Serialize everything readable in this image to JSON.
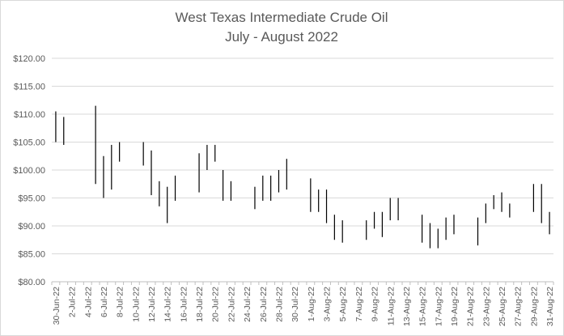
{
  "chart_data": {
    "type": "high-low",
    "title": "West Texas Intermediate Crude Oil",
    "subtitle": "July - August 2022",
    "xlabel": "",
    "ylabel": "",
    "ylim": [
      80,
      120
    ],
    "ytick_step": 5,
    "ytick_labels": [
      "$80.00",
      "$85.00",
      "$90.00",
      "$95.00",
      "$100.00",
      "$105.00",
      "$110.00",
      "$115.00",
      "$120.00"
    ],
    "grid": true,
    "legend": "none",
    "line_color": "#000000",
    "x_start": "2022-06-30",
    "x_end": "2022-08-31",
    "xtick_labels": [
      "30-Jun-22",
      "2-Jul-22",
      "4-Jul-22",
      "6-Jul-22",
      "8-Jul-22",
      "10-Jul-22",
      "12-Jul-22",
      "14-Jul-22",
      "16-Jul-22",
      "18-Jul-22",
      "20-Jul-22",
      "22-Jul-22",
      "24-Jul-22",
      "26-Jul-22",
      "28-Jul-22",
      "30-Jul-22",
      "1-Aug-22",
      "3-Aug-22",
      "5-Aug-22",
      "7-Aug-22",
      "9-Aug-22",
      "11-Aug-22",
      "13-Aug-22",
      "15-Aug-22",
      "17-Aug-22",
      "19-Aug-22",
      "21-Aug-22",
      "23-Aug-22",
      "25-Aug-22",
      "27-Aug-22",
      "29-Aug-22",
      "31-Aug-22"
    ],
    "data": [
      {
        "date": "2022-06-30",
        "high": 110.5,
        "low": 105.0
      },
      {
        "date": "2022-07-01",
        "high": 109.5,
        "low": 104.5
      },
      {
        "date": "2022-07-05",
        "high": 111.5,
        "low": 97.5
      },
      {
        "date": "2022-07-06",
        "high": 102.5,
        "low": 95.0
      },
      {
        "date": "2022-07-07",
        "high": 104.5,
        "low": 96.5
      },
      {
        "date": "2022-07-08",
        "high": 105.0,
        "low": 101.5
      },
      {
        "date": "2022-07-11",
        "high": 105.0,
        "low": 100.8
      },
      {
        "date": "2022-07-12",
        "high": 103.5,
        "low": 95.5
      },
      {
        "date": "2022-07-13",
        "high": 98.0,
        "low": 93.5
      },
      {
        "date": "2022-07-14",
        "high": 97.0,
        "low": 90.5
      },
      {
        "date": "2022-07-15",
        "high": 99.0,
        "low": 94.5
      },
      {
        "date": "2022-07-18",
        "high": 103.0,
        "low": 96.0
      },
      {
        "date": "2022-07-19",
        "high": 104.5,
        "low": 100.0
      },
      {
        "date": "2022-07-20",
        "high": 104.5,
        "low": 101.5
      },
      {
        "date": "2022-07-21",
        "high": 100.0,
        "low": 94.5
      },
      {
        "date": "2022-07-22",
        "high": 98.0,
        "low": 94.5
      },
      {
        "date": "2022-07-25",
        "high": 97.0,
        "low": 93.0
      },
      {
        "date": "2022-07-26",
        "high": 99.0,
        "low": 94.5
      },
      {
        "date": "2022-07-27",
        "high": 99.0,
        "low": 94.5
      },
      {
        "date": "2022-07-28",
        "high": 100.0,
        "low": 96.0
      },
      {
        "date": "2022-07-29",
        "high": 102.0,
        "low": 96.5
      },
      {
        "date": "2022-08-01",
        "high": 98.5,
        "low": 92.5
      },
      {
        "date": "2022-08-02",
        "high": 96.5,
        "low": 92.5
      },
      {
        "date": "2022-08-03",
        "high": 96.5,
        "low": 90.5
      },
      {
        "date": "2022-08-04",
        "high": 92.0,
        "low": 87.5
      },
      {
        "date": "2022-08-05",
        "high": 91.0,
        "low": 87.0
      },
      {
        "date": "2022-08-08",
        "high": 91.0,
        "low": 87.5
      },
      {
        "date": "2022-08-09",
        "high": 92.5,
        "low": 89.5
      },
      {
        "date": "2022-08-10",
        "high": 92.5,
        "low": 88.0
      },
      {
        "date": "2022-08-11",
        "high": 95.0,
        "low": 91.0
      },
      {
        "date": "2022-08-12",
        "high": 95.0,
        "low": 91.0
      },
      {
        "date": "2022-08-15",
        "high": 92.0,
        "low": 87.0
      },
      {
        "date": "2022-08-16",
        "high": 90.5,
        "low": 86.0
      },
      {
        "date": "2022-08-17",
        "high": 89.5,
        "low": 86.0
      },
      {
        "date": "2022-08-18",
        "high": 91.5,
        "low": 87.5
      },
      {
        "date": "2022-08-19",
        "high": 92.0,
        "low": 88.5
      },
      {
        "date": "2022-08-22",
        "high": 91.5,
        "low": 86.5
      },
      {
        "date": "2022-08-23",
        "high": 94.0,
        "low": 90.5
      },
      {
        "date": "2022-08-24",
        "high": 95.5,
        "low": 93.0
      },
      {
        "date": "2022-08-25",
        "high": 96.0,
        "low": 92.5
      },
      {
        "date": "2022-08-26",
        "high": 94.0,
        "low": 91.5
      },
      {
        "date": "2022-08-29",
        "high": 97.5,
        "low": 92.5
      },
      {
        "date": "2022-08-30",
        "high": 97.5,
        "low": 90.5
      },
      {
        "date": "2022-08-31",
        "high": 92.5,
        "low": 88.5
      }
    ]
  }
}
